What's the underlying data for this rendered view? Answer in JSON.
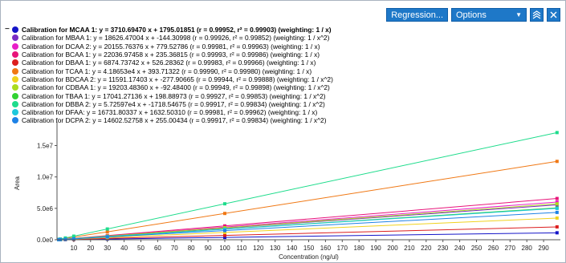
{
  "toolbar": {
    "regression_label": "Regression...",
    "options_label": "Options",
    "expand_icon": "expand-chart-icon",
    "close_icon": "close-icon"
  },
  "legend": [
    {
      "label": "Calibration for MCAA 1: y = 3710.69470 x + 1795.01851 (r = 0.99952, r² = 0.99903)  (weighting: 1 / x)",
      "color": "#1414c8",
      "bold": true
    },
    {
      "label": "Calibration for MBAA 1: y = 18626.47004 x + -144.30998 (r = 0.99926, r² = 0.99852)  (weighting: 1 / x^2)",
      "color": "#7a2cc4"
    },
    {
      "label": "Calibration for DCAA 2: y = 20155.76376 x + 779.52786 (r = 0.99981, r² = 0.99963)  (weighting: 1 / x)",
      "color": "#e81ec8"
    },
    {
      "label": "Calibration for BCAA 1: y = 22036.97458 x + 235.36815 (r = 0.99993, r² = 0.99986)  (weighting: 1 / x)",
      "color": "#e8147a"
    },
    {
      "label": "Calibration for DBAA 1: y = 6874.73742 x + 526.28362 (r = 0.99983, r² = 0.99966)  (weighting: 1 / x)",
      "color": "#dc1e1e"
    },
    {
      "label": "Calibration for TCAA 1: y = 4.18653e4 x + 393.71322 (r = 0.99990, r² = 0.99980)  (weighting: 1 / x)",
      "color": "#f07814"
    },
    {
      "label": "Calibration for BDCAA 2: y = 11591.17403 x + -277.90665 (r = 0.99944, r² = 0.99888)  (weighting: 1 / x^2)",
      "color": "#f0d21e"
    },
    {
      "label": "Calibration for CDBAA 1: y = 19203.48360 x + -92.48400 (r = 0.99949, r² = 0.99898)  (weighting: 1 / x^2)",
      "color": "#aadc1e"
    },
    {
      "label": "Calibration for TBAA 1: y = 17041.27136 x + 198.88973 (r = 0.99927, r² = 0.99853)  (weighting: 1 / x^2)",
      "color": "#32d232"
    },
    {
      "label": "Calibration for DBBA 2: y = 5.72597e4 x + -1718.54675 (r = 0.99917, r² = 0.99834)  (weighting: 1 / x^2)",
      "color": "#1edc8c"
    },
    {
      "label": "Calibration for DFAA: y = 16731.80337 x + 1632.50310 (r = 0.99981, r² = 0.99962)  (weighting: 1 / x)",
      "color": "#1ec8dc"
    },
    {
      "label": "Calibration for DCPA 2: y = 14602.52758 x + 255.00434 (r = 0.99917, r² = 0.99834)  (weighting: 1 / x^2)",
      "color": "#1e82e6"
    }
  ],
  "chart_data": {
    "type": "scatter",
    "xlabel": "Concentration (ng/ul)",
    "ylabel": "Area",
    "xlim": [
      0,
      300
    ],
    "ylim": [
      0,
      18000000
    ],
    "xticks": [
      10,
      20,
      30,
      40,
      50,
      60,
      70,
      80,
      90,
      100,
      110,
      120,
      130,
      140,
      150,
      160,
      170,
      180,
      190,
      200,
      210,
      220,
      230,
      240,
      250,
      260,
      270,
      280,
      290
    ],
    "yticks": [
      0,
      5000000,
      10000000,
      15000000
    ],
    "ytick_labels": [
      "0.0e0",
      "5.0e6",
      "1.0e7",
      "1.5e7"
    ],
    "grid": false,
    "x_points": [
      1,
      2,
      5,
      10,
      30,
      100,
      298
    ],
    "series": [
      {
        "name": "MCAA 1",
        "color": "#1414c8",
        "slope": 3710.6947,
        "intercept": 1795.01851
      },
      {
        "name": "MBAA 1",
        "color": "#7a2cc4",
        "slope": 18626.47004,
        "intercept": -144.30998
      },
      {
        "name": "DCAA 2",
        "color": "#e81ec8",
        "slope": 20155.76376,
        "intercept": 779.52786
      },
      {
        "name": "BCAA 1",
        "color": "#e8147a",
        "slope": 22036.97458,
        "intercept": 235.36815
      },
      {
        "name": "DBAA 1",
        "color": "#dc1e1e",
        "slope": 6874.73742,
        "intercept": 526.28362
      },
      {
        "name": "TCAA 1",
        "color": "#f07814",
        "slope": 41865.3,
        "intercept": 393.71322
      },
      {
        "name": "BDCAA 2",
        "color": "#f0d21e",
        "slope": 11591.17403,
        "intercept": -277.90665
      },
      {
        "name": "CDBAA 1",
        "color": "#aadc1e",
        "slope": 19203.4836,
        "intercept": -92.484
      },
      {
        "name": "TBAA 1",
        "color": "#32d232",
        "slope": 17041.27136,
        "intercept": 198.88973
      },
      {
        "name": "DBBA 2",
        "color": "#1edc8c",
        "slope": 57259.7,
        "intercept": -1718.54675
      },
      {
        "name": "DFAA",
        "color": "#1ec8dc",
        "slope": 16731.80337,
        "intercept": 1632.5031
      },
      {
        "name": "DCPA 2",
        "color": "#1e82e6",
        "slope": 14602.52758,
        "intercept": 255.00434
      }
    ]
  }
}
